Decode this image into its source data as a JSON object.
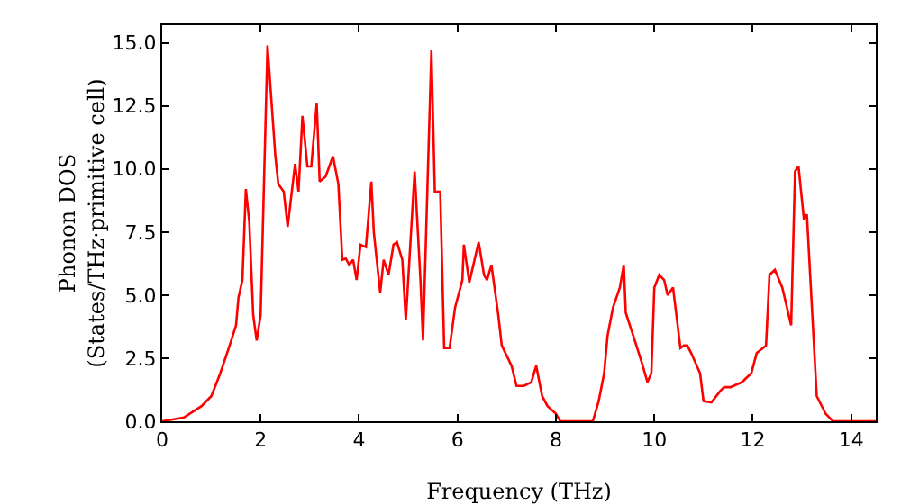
{
  "chart_data": {
    "type": "line",
    "xlabel": "Frequency (THz)",
    "ylabel": "Phonon DOS\n(States/THz·primitive cell)",
    "x": [
      0,
      0.44,
      0.8,
      1.0,
      1.18,
      1.37,
      1.5,
      1.55,
      1.63,
      1.7,
      1.77,
      1.85,
      1.92,
      2.0,
      2.14,
      2.3,
      2.36,
      2.47,
      2.55,
      2.7,
      2.77,
      2.85,
      2.95,
      3.03,
      3.14,
      3.2,
      3.32,
      3.47,
      3.58,
      3.66,
      3.73,
      3.8,
      3.88,
      3.95,
      4.03,
      4.14,
      4.25,
      4.3,
      4.43,
      4.5,
      4.6,
      4.7,
      4.77,
      4.88,
      4.95,
      5.13,
      5.25,
      5.3,
      5.47,
      5.54,
      5.65,
      5.73,
      5.84,
      5.95,
      6.1,
      6.13,
      6.24,
      6.43,
      6.54,
      6.6,
      6.69,
      6.83,
      6.9,
      7.1,
      7.2,
      7.35,
      7.5,
      7.6,
      7.72,
      7.83,
      8.0,
      8.09,
      8.75,
      8.87,
      8.98,
      9.05,
      9.16,
      9.3,
      9.38,
      9.42,
      9.57,
      9.75,
      9.86,
      9.94,
      10.0,
      10.1,
      10.2,
      10.27,
      10.38,
      10.53,
      10.6,
      10.67,
      10.75,
      10.93,
      11.0,
      11.16,
      11.34,
      11.42,
      11.55,
      11.78,
      11.97,
      12.08,
      12.27,
      12.34,
      12.45,
      12.6,
      12.78,
      12.86,
      12.93,
      13.04,
      13.1,
      13.3,
      13.48,
      13.63,
      14.5
    ],
    "series": [
      {
        "color": "#ff0000",
        "values": [
          0,
          0.15,
          0.6,
          1.0,
          1.9,
          3.0,
          3.8,
          4.9,
          5.6,
          9.2,
          7.9,
          4.2,
          3.2,
          4.2,
          14.9,
          10.5,
          9.4,
          9.1,
          7.7,
          10.2,
          9.1,
          12.1,
          10.1,
          10.1,
          12.6,
          9.5,
          9.7,
          10.5,
          9.4,
          6.4,
          6.45,
          6.2,
          6.4,
          5.6,
          7.0,
          6.9,
          9.5,
          7.5,
          5.1,
          6.4,
          5.8,
          7.0,
          7.1,
          6.4,
          4.0,
          9.9,
          5.5,
          3.2,
          14.7,
          9.1,
          9.1,
          2.9,
          2.9,
          4.5,
          5.6,
          7.0,
          5.5,
          7.1,
          5.8,
          5.6,
          6.2,
          4.2,
          3.0,
          2.2,
          1.4,
          1.4,
          1.55,
          2.2,
          1.0,
          0.6,
          0.3,
          0,
          0,
          0.8,
          1.9,
          3.4,
          4.5,
          5.3,
          6.2,
          4.3,
          3.4,
          2.3,
          1.55,
          1.9,
          5.3,
          5.8,
          5.6,
          5.0,
          5.3,
          2.9,
          3.0,
          3.0,
          2.7,
          1.9,
          0.8,
          0.75,
          1.2,
          1.35,
          1.35,
          1.55,
          1.9,
          2.7,
          3.0,
          5.8,
          6.0,
          5.3,
          3.8,
          9.9,
          10.1,
          8.0,
          8.2,
          1.0,
          0.3,
          0,
          0
        ]
      }
    ],
    "xlim": [
      0,
      14.5
    ],
    "xticks": [
      0,
      2,
      4,
      6,
      8,
      10,
      12,
      14
    ],
    "ylim": [
      0,
      15.7
    ],
    "yticks": [
      {
        "value": 0,
        "label": "0.0"
      },
      {
        "value": 2.5,
        "label": "2.5"
      },
      {
        "value": 5,
        "label": "5.0"
      },
      {
        "value": 7.5,
        "label": "7.5"
      },
      {
        "value": 10,
        "label": "10.0"
      },
      {
        "value": 12.5,
        "label": "12.5"
      },
      {
        "value": 15,
        "label": "15.0"
      }
    ],
    "grid": false,
    "marker": "none",
    "line_style": "solid"
  }
}
